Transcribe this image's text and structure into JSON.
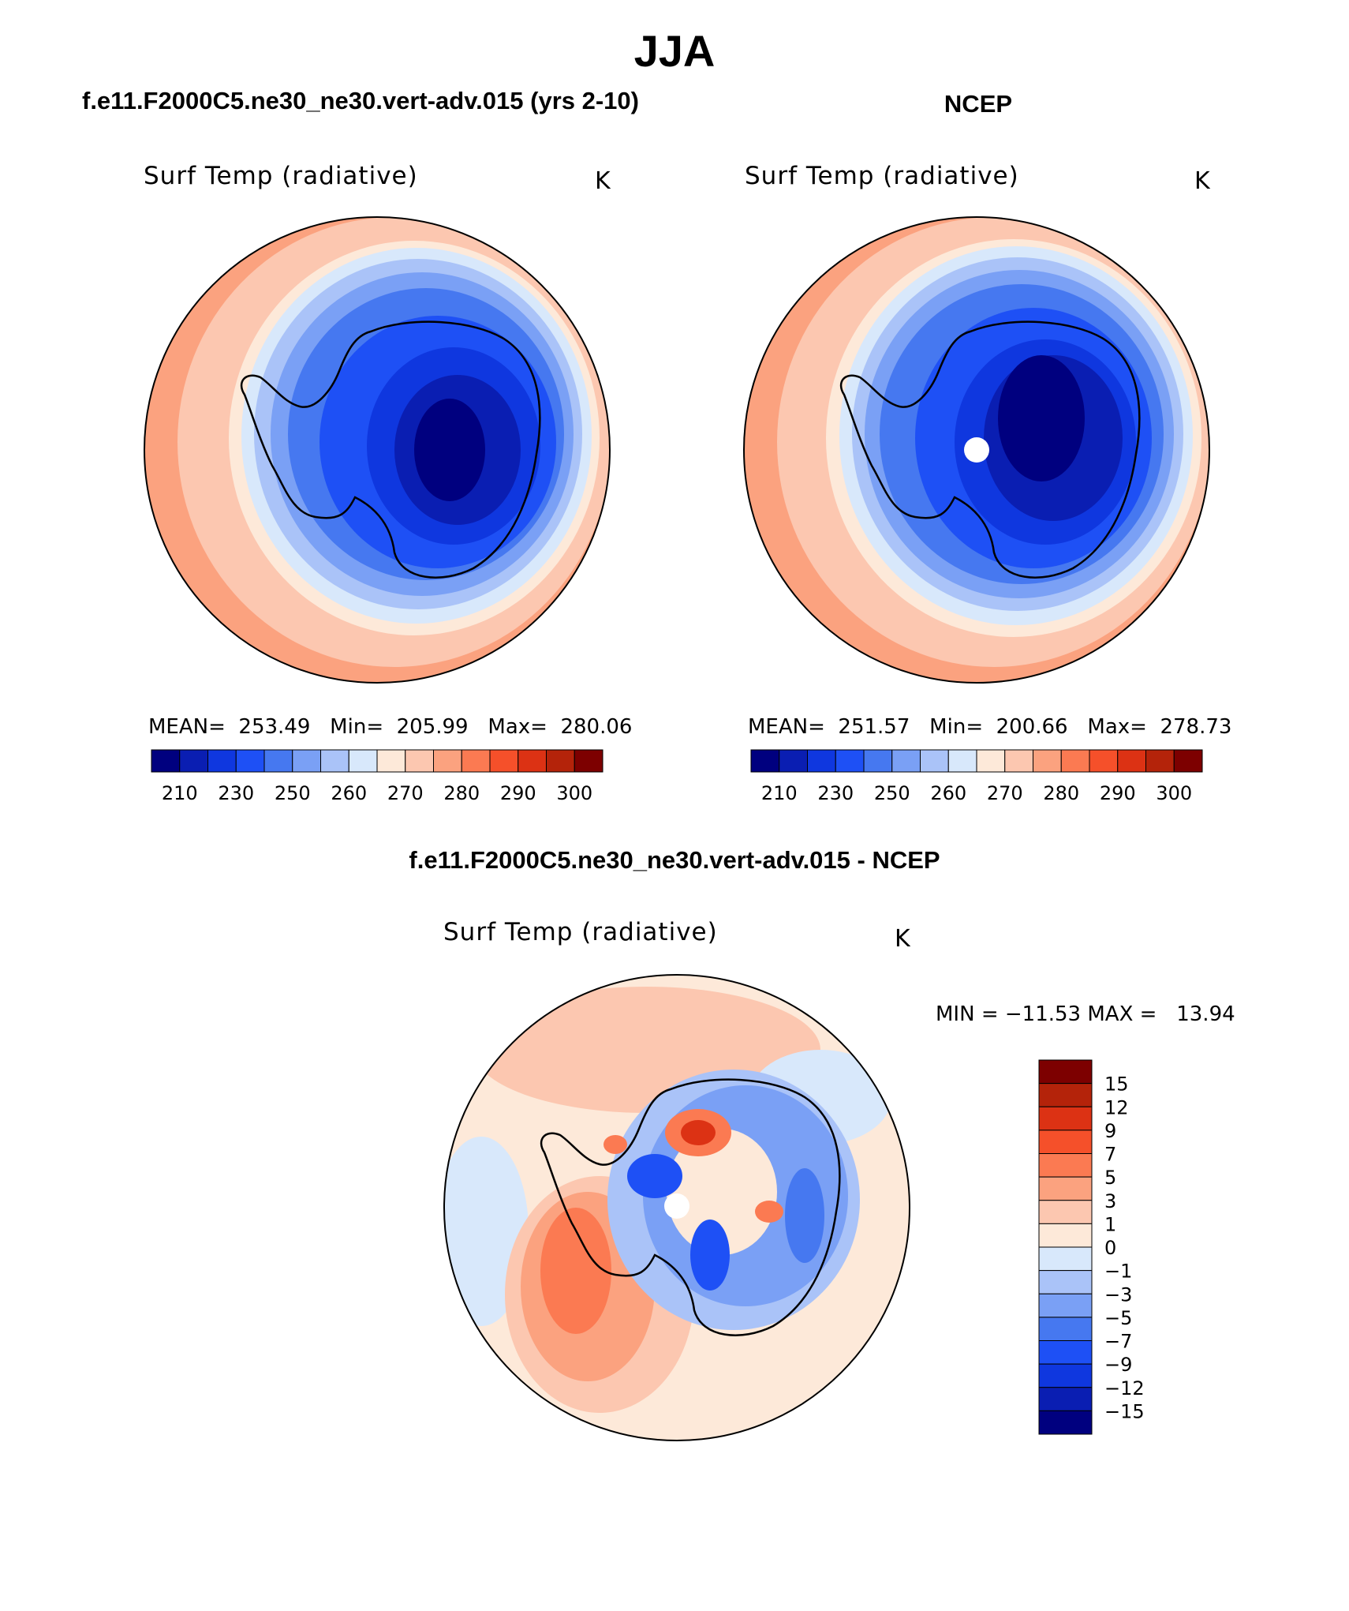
{
  "main_title": "JJA",
  "panels": [
    {
      "case_title": "f.e11.F2000C5.ne30_ne30.vert-adv.015 (yrs 2-10)",
      "var_label": "Surf Temp (radiative)",
      "units": "K",
      "stats_text": "MEAN=  253.49   Min=  205.99   Max=  280.06",
      "colorbar_ticks": [
        "210",
        "230",
        "250",
        "260",
        "270",
        "280",
        "290",
        "300"
      ]
    },
    {
      "case_title": "NCEP",
      "var_label": "Surf Temp (radiative)",
      "units": "K",
      "stats_text": "MEAN=  251.57   Min=  200.66   Max=  278.73",
      "colorbar_ticks": [
        "210",
        "230",
        "250",
        "260",
        "270",
        "280",
        "290",
        "300"
      ]
    }
  ],
  "difference": {
    "case_title": "f.e11.F2000C5.ne30_ne30.vert-adv.015 - NCEP",
    "var_label": "Surf Temp (radiative)",
    "units": "K",
    "stats_text": "MIN = −11.53 MAX =   13.94",
    "colorbar_ticks": [
      "15",
      "12",
      "9",
      "7",
      "5",
      "3",
      "1",
      "0",
      "−1",
      "−3",
      "−5",
      "−7",
      "−9",
      "−12",
      "−15"
    ]
  },
  "colors": {
    "abs_scale": [
      "#00007f",
      "#0a1eb2",
      "#0f37df",
      "#1e50f5",
      "#4678f0",
      "#7aa0f5",
      "#aac3f8",
      "#d8e8fb",
      "#fde9d9",
      "#fcc7b0",
      "#fba27f",
      "#fb7a52",
      "#f5502a",
      "#dc3214",
      "#b4230a",
      "#7d0000"
    ],
    "diff_scale": [
      "#7d0000",
      "#b4230a",
      "#dc3214",
      "#f5502a",
      "#fb7a52",
      "#fba27f",
      "#fcc7b0",
      "#fde9d9",
      "#d8e8fb",
      "#aac3f8",
      "#7aa0f5",
      "#4678f0",
      "#1e50f5",
      "#0f37df",
      "#0a1eb2",
      "#00007f"
    ]
  }
}
